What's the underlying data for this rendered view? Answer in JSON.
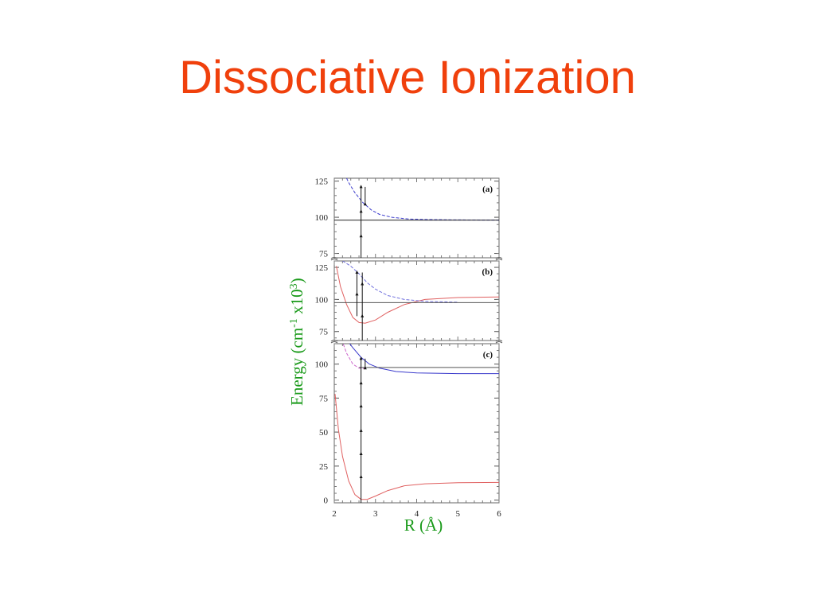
{
  "slide": {
    "title": "Dissociative Ionization"
  },
  "chart_data": {
    "type": "line",
    "ylabel_main": "Energy (cm",
    "ylabel_sup": "-1",
    "ylabel_mid": " x10",
    "ylabel_sup2": "3",
    "ylabel_end": ")",
    "xlabel": "R (Å)",
    "x_range": [
      2,
      6
    ],
    "x_ticks": [
      "2",
      "3",
      "4",
      "5",
      "6"
    ],
    "panels": [
      {
        "label": "(a)",
        "ylim": [
          72,
          127
        ],
        "y_ticks": [
          {
            "v": 75,
            "t": "75"
          },
          {
            "v": 100,
            "t": "100"
          },
          {
            "v": 125,
            "t": "125"
          }
        ],
        "series": [
          {
            "color": "#3a3acc",
            "dash": true,
            "points": [
              [
                2.25,
                130
              ],
              [
                2.35,
                124
              ],
              [
                2.5,
                117
              ],
              [
                2.7,
                110
              ],
              [
                2.9,
                105
              ],
              [
                3.1,
                102
              ],
              [
                3.4,
                100
              ],
              [
                3.8,
                98.8
              ],
              [
                4.3,
                98.4
              ],
              [
                5.0,
                98.2
              ],
              [
                6.0,
                98.0
              ]
            ]
          },
          {
            "color": "#222222",
            "dash": false,
            "points": [
              [
                2.0,
                98
              ],
              [
                6.0,
                98
              ]
            ]
          }
        ],
        "transitions": [
          {
            "x": 2.65,
            "y0": 72,
            "y1": 121,
            "marks": [
              87,
              104,
              121
            ]
          },
          {
            "x": 2.75,
            "y0": 109,
            "y1": 121,
            "marks": [
              109
            ]
          }
        ]
      },
      {
        "label": "(b)",
        "ylim": [
          68,
          130
        ],
        "y_ticks": [
          {
            "v": 75,
            "t": "75"
          },
          {
            "v": 100,
            "t": "100"
          },
          {
            "v": 125,
            "t": "125"
          }
        ],
        "series": [
          {
            "color": "#e06060",
            "dash": false,
            "points": [
              [
                2.05,
                126
              ],
              [
                2.15,
                110
              ],
              [
                2.3,
                96
              ],
              [
                2.45,
                86
              ],
              [
                2.6,
                82
              ],
              [
                2.75,
                81.5
              ],
              [
                3.0,
                84
              ],
              [
                3.3,
                90
              ],
              [
                3.7,
                96
              ],
              [
                4.2,
                100
              ],
              [
                5.0,
                101.5
              ],
              [
                6.0,
                102
              ]
            ]
          },
          {
            "color": "#7070dd",
            "dash": true,
            "points": [
              [
                2.2,
                130
              ],
              [
                2.4,
                126
              ],
              [
                2.6,
                120
              ],
              [
                2.8,
                113
              ],
              [
                3.0,
                108
              ],
              [
                3.3,
                103
              ],
              [
                3.7,
                100
              ],
              [
                4.2,
                98.5
              ],
              [
                4.8,
                98
              ],
              [
                5.0,
                97.8
              ]
            ]
          },
          {
            "color": "#555555",
            "dash": false,
            "points": [
              [
                2.0,
                97.5
              ],
              [
                6.0,
                97.5
              ]
            ]
          }
        ],
        "transitions": [
          {
            "x": 2.55,
            "y0": 87,
            "y1": 121,
            "marks": [
              104,
              121
            ]
          },
          {
            "x": 2.68,
            "y0": 68,
            "y1": 121,
            "marks": [
              87,
              112
            ]
          }
        ]
      },
      {
        "label": "(c)",
        "ylim": [
          -2,
          115
        ],
        "y_ticks": [
          {
            "v": 0,
            "t": "0"
          },
          {
            "v": 25,
            "t": "25"
          },
          {
            "v": 50,
            "t": "50"
          },
          {
            "v": 75,
            "t": "75"
          },
          {
            "v": 100,
            "t": "100"
          }
        ],
        "series": [
          {
            "color": "#e06060",
            "dash": false,
            "points": [
              [
                2.02,
                78
              ],
              [
                2.1,
                52
              ],
              [
                2.2,
                32
              ],
              [
                2.35,
                14
              ],
              [
                2.5,
                4
              ],
              [
                2.65,
                0.5
              ],
              [
                2.8,
                0.5
              ],
              [
                3.0,
                3
              ],
              [
                3.3,
                7
              ],
              [
                3.7,
                10.5
              ],
              [
                4.2,
                12
              ],
              [
                5.0,
                12.8
              ],
              [
                6.0,
                13
              ]
            ]
          },
          {
            "color": "#3a3acc",
            "dash": false,
            "points": [
              [
                2.25,
                120
              ],
              [
                2.45,
                112
              ],
              [
                2.65,
                105
              ],
              [
                2.85,
                100
              ],
              [
                3.1,
                97
              ],
              [
                3.5,
                94.5
              ],
              [
                4.0,
                93.5
              ],
              [
                5.0,
                93
              ],
              [
                6.0,
                93
              ]
            ]
          },
          {
            "color": "#cc66cc",
            "dash": true,
            "points": [
              [
                2.18,
                118
              ],
              [
                2.3,
                108
              ],
              [
                2.45,
                100
              ],
              [
                2.6,
                97
              ],
              [
                2.8,
                96.5
              ]
            ]
          },
          {
            "color": "#555555",
            "dash": false,
            "points": [
              [
                2.6,
                97.5
              ],
              [
                6.0,
                97.5
              ]
            ]
          }
        ],
        "transitions": [
          {
            "x": 2.65,
            "y0": -2,
            "y1": 104,
            "marks": [
              17,
              34,
              51,
              69,
              86,
              104
            ]
          },
          {
            "x": 2.75,
            "y0": 97,
            "y1": 104,
            "marks": [
              97
            ]
          }
        ]
      }
    ]
  }
}
